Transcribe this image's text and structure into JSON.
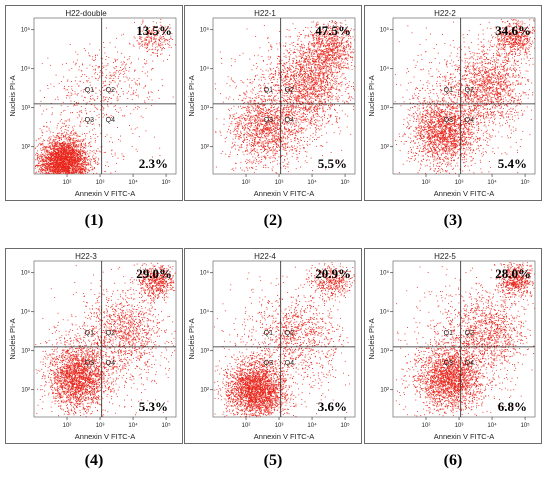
{
  "chart_data": [
    {
      "type": "scatter",
      "title": "H22-double",
      "caption": "(1)",
      "xlabel": "Annexin V FITC-A",
      "ylabel": "Nucleis PI-A",
      "quadrants": [
        "Q1",
        "Q2",
        "Q3",
        "Q4"
      ],
      "upper_right_pct": "13.5%",
      "lower_right_pct": "2.3%",
      "xlim": [
        10,
        200000
      ],
      "ylim": [
        20,
        200000
      ],
      "x_ticks": [
        "10²",
        "10³",
        "10⁴",
        "10⁵"
      ],
      "y_ticks": [
        "10²",
        "10³",
        "10⁴",
        "10⁵"
      ],
      "x_ticks_log": [
        2,
        3,
        4,
        5
      ],
      "y_ticks_log": [
        2,
        3,
        4,
        5
      ],
      "gate_x_log": 3.05,
      "gate_y_log": 3.1,
      "clusters": [
        {
          "x_log": 1.9,
          "y_log": 1.6,
          "sx": 0.38,
          "sy": 0.32,
          "weight": 0.78
        },
        {
          "x_log": 3.3,
          "y_log": 3.7,
          "sx": 0.7,
          "sy": 0.45,
          "weight": 0.08
        },
        {
          "x_log": 4.6,
          "y_log": 4.8,
          "sx": 0.3,
          "sy": 0.22,
          "weight": 0.06
        },
        {
          "x_log": 2.4,
          "y_log": 2.6,
          "sx": 0.9,
          "sy": 0.8,
          "weight": 0.08
        }
      ]
    },
    {
      "type": "scatter",
      "title": "H22-1",
      "caption": "(2)",
      "xlabel": "Annexin V FITC-A",
      "ylabel": "Nucleis PI-A",
      "quadrants": [
        "Q1",
        "Q2",
        "Q3",
        "Q4"
      ],
      "upper_right_pct": "47.5%",
      "lower_right_pct": "5.5%",
      "xlim": [
        10,
        200000
      ],
      "ylim": [
        20,
        200000
      ],
      "x_ticks": [
        "10²",
        "10³",
        "10⁴",
        "10⁵"
      ],
      "y_ticks": [
        "10²",
        "10³",
        "10⁴",
        "10⁵"
      ],
      "x_ticks_log": [
        2,
        3,
        4,
        5
      ],
      "y_ticks_log": [
        2,
        3,
        4,
        5
      ],
      "gate_x_log": 3.05,
      "gate_y_log": 3.1,
      "clusters": [
        {
          "x_log": 2.6,
          "y_log": 2.5,
          "sx": 0.55,
          "sy": 0.5,
          "weight": 0.32
        },
        {
          "x_log": 3.9,
          "y_log": 3.7,
          "sx": 0.55,
          "sy": 0.55,
          "weight": 0.4
        },
        {
          "x_log": 4.6,
          "y_log": 4.6,
          "sx": 0.35,
          "sy": 0.3,
          "weight": 0.16
        },
        {
          "x_log": 3.0,
          "y_log": 3.0,
          "sx": 1.0,
          "sy": 0.9,
          "weight": 0.12
        }
      ]
    },
    {
      "type": "scatter",
      "title": "H22-2",
      "caption": "(3)",
      "xlabel": "Annexin V FITC-A",
      "ylabel": "Nucleis PI-A",
      "quadrants": [
        "Q1",
        "Q2",
        "Q3",
        "Q4"
      ],
      "upper_right_pct": "34.6%",
      "lower_right_pct": "5.4%",
      "xlim": [
        10,
        200000
      ],
      "ylim": [
        20,
        200000
      ],
      "x_ticks": [
        "10²",
        "10³",
        "10⁴",
        "10⁵"
      ],
      "y_ticks": [
        "10²",
        "10³",
        "10⁴",
        "10⁵"
      ],
      "x_ticks_log": [
        2,
        3,
        4,
        5
      ],
      "y_ticks_log": [
        2,
        3,
        4,
        5
      ],
      "gate_x_log": 3.05,
      "gate_y_log": 3.1,
      "clusters": [
        {
          "x_log": 2.5,
          "y_log": 2.4,
          "sx": 0.5,
          "sy": 0.45,
          "weight": 0.42
        },
        {
          "x_log": 3.9,
          "y_log": 3.6,
          "sx": 0.55,
          "sy": 0.5,
          "weight": 0.3
        },
        {
          "x_log": 4.7,
          "y_log": 4.8,
          "sx": 0.3,
          "sy": 0.25,
          "weight": 0.14
        },
        {
          "x_log": 3.0,
          "y_log": 3.0,
          "sx": 1.0,
          "sy": 0.9,
          "weight": 0.14
        }
      ]
    },
    {
      "type": "scatter",
      "title": "H22-3",
      "caption": "(4)",
      "xlabel": "Annexin V FITC-A",
      "ylabel": "Nucleis PI-A",
      "quadrants": [
        "Q1",
        "Q2",
        "Q3",
        "Q4"
      ],
      "upper_right_pct": "29.0%",
      "lower_right_pct": "5.3%",
      "xlim": [
        10,
        200000
      ],
      "ylim": [
        20,
        200000
      ],
      "x_ticks": [
        "10²",
        "10³",
        "10⁴",
        "10⁵"
      ],
      "y_ticks": [
        "10²",
        "10³",
        "10⁴",
        "10⁵"
      ],
      "x_ticks_log": [
        2,
        3,
        4,
        5
      ],
      "y_ticks_log": [
        2,
        3,
        4,
        5
      ],
      "gate_x_log": 3.05,
      "gate_y_log": 3.1,
      "clusters": [
        {
          "x_log": 2.3,
          "y_log": 2.3,
          "sx": 0.45,
          "sy": 0.42,
          "weight": 0.52
        },
        {
          "x_log": 3.8,
          "y_log": 3.5,
          "sx": 0.55,
          "sy": 0.5,
          "weight": 0.22
        },
        {
          "x_log": 4.7,
          "y_log": 4.8,
          "sx": 0.28,
          "sy": 0.22,
          "weight": 0.14
        },
        {
          "x_log": 3.0,
          "y_log": 3.0,
          "sx": 1.0,
          "sy": 0.9,
          "weight": 0.12
        }
      ]
    },
    {
      "type": "scatter",
      "title": "H22-4",
      "caption": "(5)",
      "xlabel": "Annexin V FITC-A",
      "ylabel": "Nucleis PI-A",
      "quadrants": [
        "Q1",
        "Q2",
        "Q3",
        "Q4"
      ],
      "upper_right_pct": "20.9%",
      "lower_right_pct": "3.6%",
      "xlim": [
        10,
        200000
      ],
      "ylim": [
        20,
        200000
      ],
      "x_ticks": [
        "10²",
        "10³",
        "10⁴",
        "10⁵"
      ],
      "y_ticks": [
        "10²",
        "10³",
        "10⁴",
        "10⁵"
      ],
      "x_ticks_log": [
        2,
        3,
        4,
        5
      ],
      "y_ticks_log": [
        2,
        3,
        4,
        5
      ],
      "gate_x_log": 3.05,
      "gate_y_log": 3.1,
      "clusters": [
        {
          "x_log": 2.3,
          "y_log": 2.0,
          "sx": 0.45,
          "sy": 0.38,
          "weight": 0.62
        },
        {
          "x_log": 3.6,
          "y_log": 3.4,
          "sx": 0.6,
          "sy": 0.5,
          "weight": 0.16
        },
        {
          "x_log": 4.6,
          "y_log": 4.8,
          "sx": 0.3,
          "sy": 0.22,
          "weight": 0.1
        },
        {
          "x_log": 3.0,
          "y_log": 3.0,
          "sx": 1.0,
          "sy": 0.9,
          "weight": 0.12
        }
      ]
    },
    {
      "type": "scatter",
      "title": "H22-5",
      "caption": "(6)",
      "xlabel": "Annexin V FITC-A",
      "ylabel": "Nucleis PI-A",
      "quadrants": [
        "Q1",
        "Q2",
        "Q3",
        "Q4"
      ],
      "upper_right_pct": "28.0%",
      "lower_right_pct": "6.8%",
      "xlim": [
        10,
        200000
      ],
      "ylim": [
        20,
        200000
      ],
      "x_ticks": [
        "10²",
        "10³",
        "10⁴",
        "10⁵"
      ],
      "y_ticks": [
        "10²",
        "10³",
        "10⁴",
        "10⁵"
      ],
      "x_ticks_log": [
        2,
        3,
        4,
        5
      ],
      "y_ticks_log": [
        2,
        3,
        4,
        5
      ],
      "gate_x_log": 3.05,
      "gate_y_log": 3.1,
      "clusters": [
        {
          "x_log": 2.7,
          "y_log": 2.3,
          "sx": 0.5,
          "sy": 0.4,
          "weight": 0.5
        },
        {
          "x_log": 3.9,
          "y_log": 3.5,
          "sx": 0.55,
          "sy": 0.5,
          "weight": 0.22
        },
        {
          "x_log": 4.7,
          "y_log": 4.8,
          "sx": 0.28,
          "sy": 0.22,
          "weight": 0.14
        },
        {
          "x_log": 3.0,
          "y_log": 3.0,
          "sx": 1.0,
          "sy": 0.9,
          "weight": 0.14
        }
      ]
    }
  ],
  "colors": {
    "dots": "#e8261c",
    "gate": "#222222",
    "frame": "#6b6b6b"
  }
}
